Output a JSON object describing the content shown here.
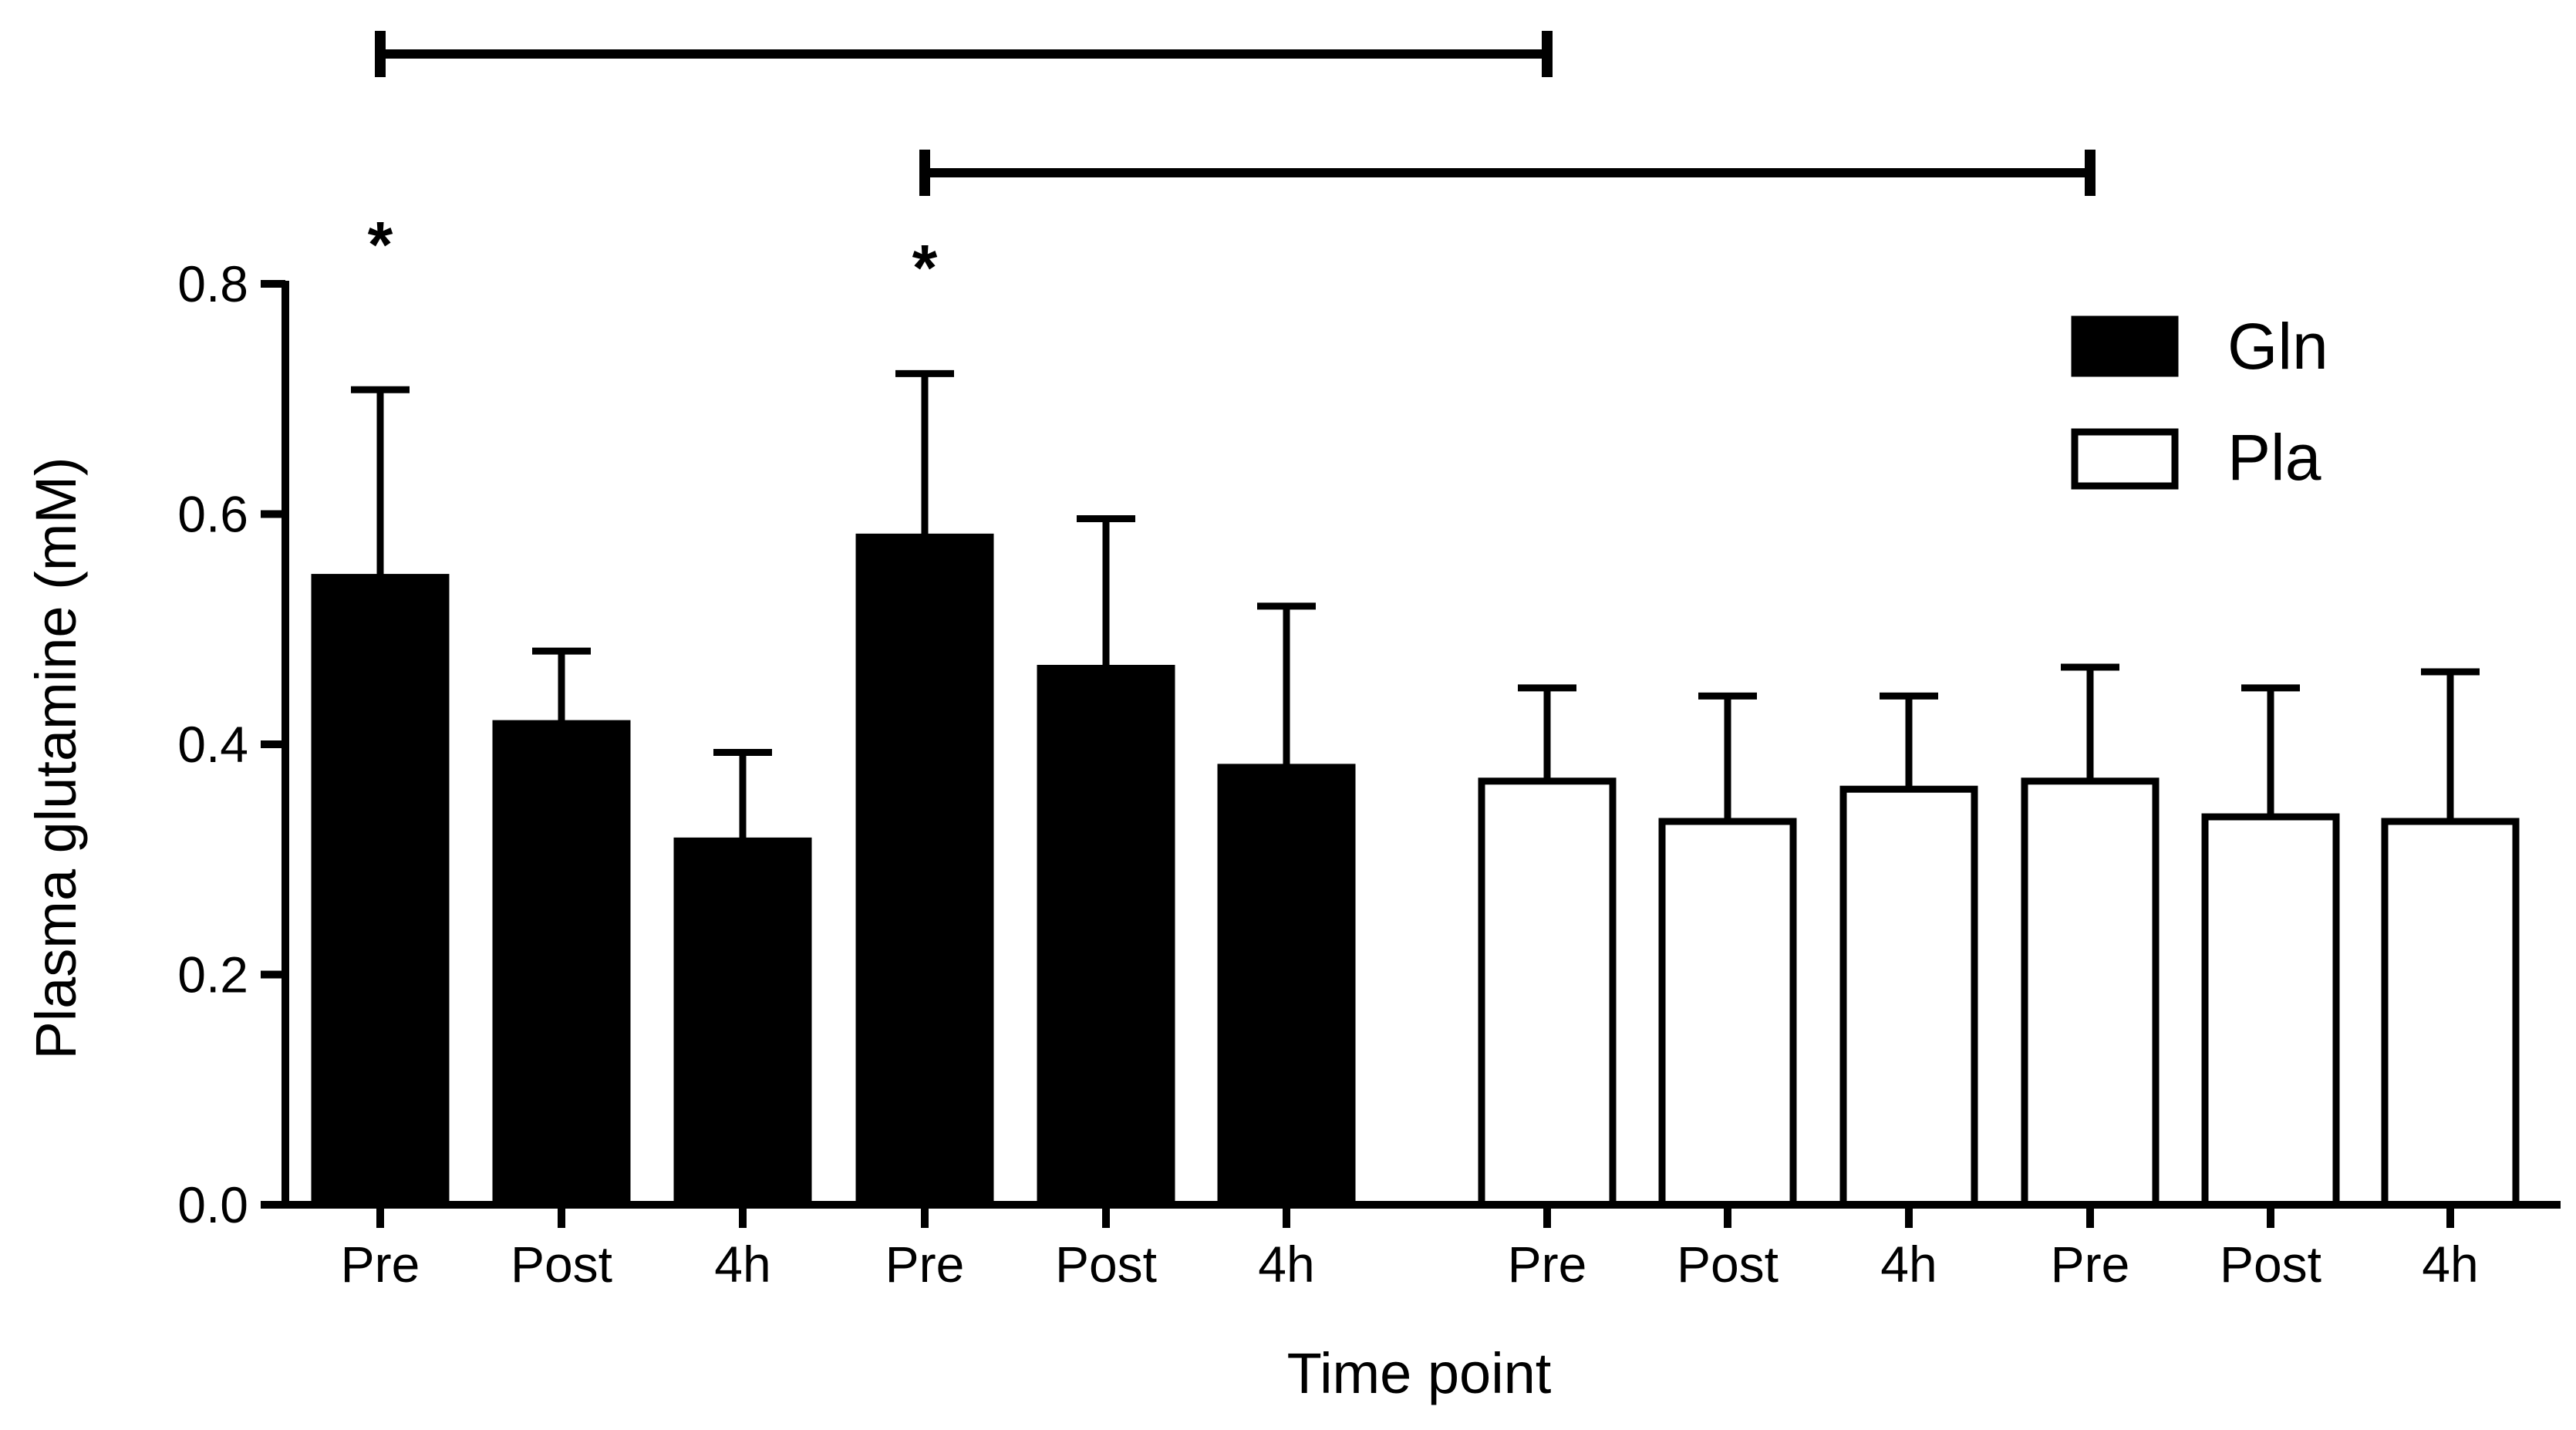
{
  "chart_data": {
    "type": "bar",
    "title": "",
    "xlabel": "Time point",
    "ylabel": "Plasma glutamine (mM)",
    "ylim": [
      0,
      0.8
    ],
    "yticks": [
      "0.0",
      "0.2",
      "0.4",
      "0.6",
      "0.8"
    ],
    "categories": [
      "Pre",
      "Post",
      "4h",
      "Pre",
      "Post",
      "4h",
      "Pre",
      "Post",
      "4h",
      "Pre",
      "Post",
      "4h"
    ],
    "series": [
      {
        "name": "Gln",
        "fill": "#000000",
        "indices": [
          0,
          1,
          2,
          3,
          4,
          5
        ]
      },
      {
        "name": "Pla",
        "fill": "#ffffff",
        "indices": [
          6,
          7,
          8,
          9,
          10,
          11
        ]
      }
    ],
    "values": [
      0.545,
      0.418,
      0.316,
      0.58,
      0.466,
      0.38,
      0.368,
      0.333,
      0.361,
      0.368,
      0.337,
      0.333
    ],
    "error_upper": [
      0.708,
      0.481,
      0.393,
      0.722,
      0.596,
      0.52,
      0.449,
      0.442,
      0.442,
      0.467,
      0.449,
      0.463
    ],
    "significance_markers": [
      {
        "label": "*",
        "bar_index": 0
      },
      {
        "label": "*",
        "bar_index": 3
      }
    ],
    "comparison_brackets": [
      {
        "from_bar": 0,
        "to_bar": 6
      },
      {
        "from_bar": 3,
        "to_bar": 9
      }
    ],
    "legend": {
      "position": "top-right",
      "entries": [
        "Gln",
        "Pla"
      ]
    },
    "grid": false
  }
}
